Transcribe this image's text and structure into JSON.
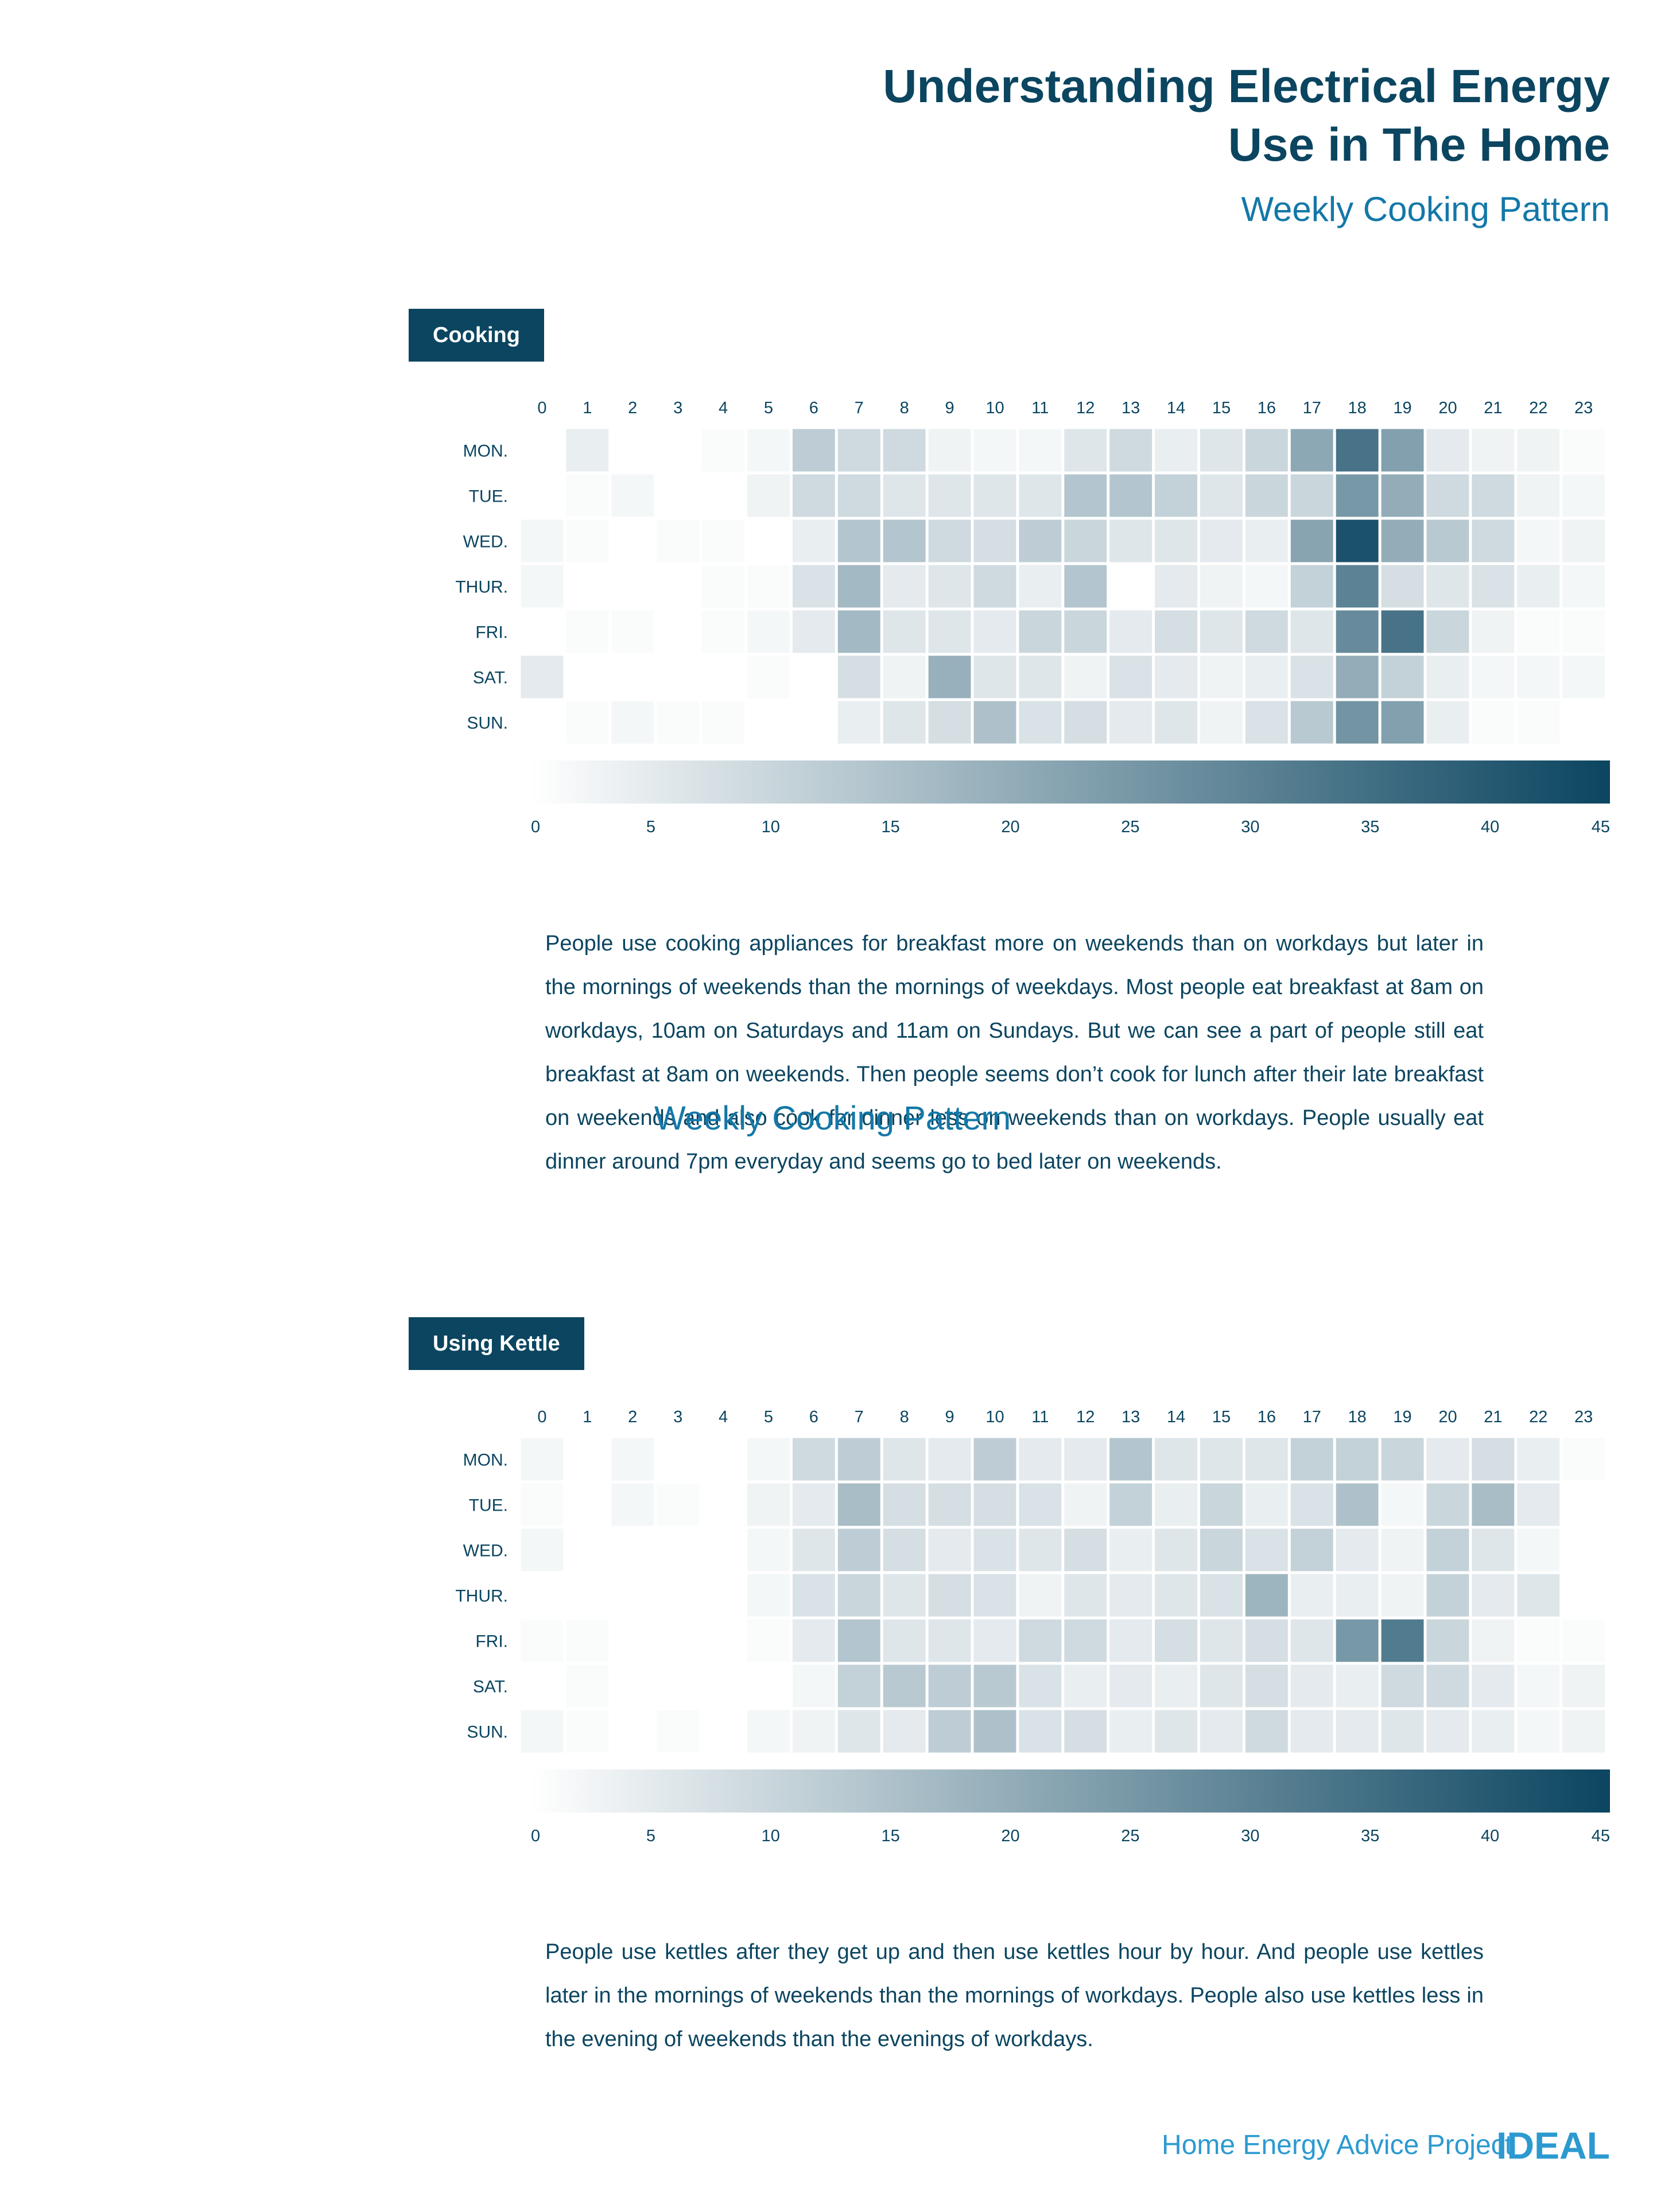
{
  "header": {
    "title_line1": "Understanding Electrical Energy",
    "title_line2": "Use in The Home",
    "subtitle": "Weekly Cooking Pattern"
  },
  "overlay_text": "Weekly Cooking Pattern",
  "sections": [
    {
      "label": "Cooking",
      "text": "People use cooking appliances for breakfast more on weekends than on workdays but later in the mornings of weekends than the mornings of weekdays. Most people eat breakfast at 8am on workdays, 10am on Saturdays and 11am on Sundays. But we can see a part of people still eat breakfast at 8am on weekends. Then people seems don’t cook for lunch after their late breakfast on weekends and also cook for dinner less on weekends than on workdays. People usually eat dinner around 7pm everyday and seems go to bed later on weekends."
    },
    {
      "label": "Using Kettle",
      "text": "People use kettles after they get up and then use kettles hour by hour. And people use kettles later in the mornings of weekends than the mornings of workdays. People also use kettles less in the evening of weekends than the evenings of workdays."
    }
  ],
  "footer": {
    "project": "Home Energy Advice Project",
    "logo": "IDEAL"
  },
  "colors": {
    "low": "#ffffff",
    "high": "#0b4560",
    "title": "#0b4560",
    "subtitle": "#1378a8",
    "footer": "#2c9ad0"
  },
  "chart_data": [
    {
      "type": "heatmap",
      "x": [
        "0",
        "1",
        "2",
        "3",
        "4",
        "5",
        "6",
        "7",
        "8",
        "9",
        "10",
        "11",
        "12",
        "13",
        "14",
        "15",
        "16",
        "17",
        "18",
        "19",
        "20",
        "21",
        "22",
        "23"
      ],
      "y": [
        "MON.",
        "TUE.",
        "WED.",
        "THUR.",
        "FRI.",
        "SAT.",
        "SUN."
      ],
      "values": [
        [
          0,
          4,
          0,
          0,
          1,
          2,
          12,
          9,
          9,
          3,
          2,
          2,
          6,
          9,
          4,
          6,
          10,
          21,
          34,
          23,
          5,
          3,
          3,
          1
        ],
        [
          0,
          1,
          2,
          0,
          0,
          3,
          9,
          9,
          6,
          6,
          6,
          6,
          14,
          14,
          11,
          6,
          10,
          10,
          25,
          20,
          9,
          9,
          3,
          2
        ],
        [
          2,
          1,
          0,
          1,
          1,
          0,
          4,
          14,
          14,
          9,
          8,
          12,
          10,
          6,
          6,
          5,
          4,
          22,
          42,
          20,
          13,
          9,
          2,
          3
        ],
        [
          2,
          0,
          0,
          0,
          1,
          1,
          7,
          17,
          5,
          6,
          9,
          4,
          14,
          0,
          5,
          3,
          2,
          11,
          30,
          8,
          6,
          7,
          4,
          2
        ],
        [
          0,
          1,
          1,
          0,
          1,
          2,
          5,
          17,
          6,
          6,
          5,
          10,
          10,
          5,
          8,
          6,
          9,
          6,
          28,
          34,
          10,
          3,
          1,
          1
        ],
        [
          5,
          0,
          0,
          0,
          0,
          1,
          0,
          8,
          3,
          19,
          6,
          6,
          3,
          7,
          5,
          3,
          4,
          7,
          20,
          11,
          4,
          2,
          2,
          2
        ],
        [
          0,
          1,
          2,
          1,
          1,
          0,
          0,
          4,
          6,
          8,
          15,
          7,
          8,
          5,
          6,
          3,
          7,
          13,
          26,
          23,
          4,
          1,
          1,
          0
        ]
      ],
      "colorbar": {
        "ticks": [
          0,
          5,
          10,
          15,
          20,
          25,
          30,
          35,
          40,
          45
        ],
        "range": [
          0,
          45
        ]
      }
    },
    {
      "type": "heatmap",
      "x": [
        "0",
        "1",
        "2",
        "3",
        "4",
        "5",
        "6",
        "7",
        "8",
        "9",
        "10",
        "11",
        "12",
        "13",
        "14",
        "15",
        "16",
        "17",
        "18",
        "19",
        "20",
        "21",
        "22",
        "23"
      ],
      "y": [
        "MON.",
        "TUE.",
        "WED.",
        "THUR.",
        "FRI.",
        "SAT.",
        "SUN."
      ],
      "values": [
        [
          2,
          0,
          2,
          0,
          0,
          2,
          9,
          12,
          6,
          5,
          12,
          5,
          5,
          14,
          6,
          6,
          6,
          11,
          11,
          10,
          5,
          8,
          4,
          1
        ],
        [
          1,
          0,
          2,
          1,
          0,
          3,
          5,
          16,
          8,
          8,
          8,
          7,
          3,
          11,
          4,
          10,
          4,
          7,
          15,
          2,
          10,
          16,
          5,
          0
        ],
        [
          2,
          0,
          0,
          0,
          0,
          2,
          6,
          12,
          8,
          5,
          7,
          6,
          8,
          4,
          6,
          10,
          7,
          11,
          5,
          3,
          11,
          6,
          2,
          0
        ],
        [
          0,
          0,
          0,
          0,
          0,
          2,
          7,
          10,
          6,
          8,
          7,
          3,
          6,
          5,
          6,
          7,
          18,
          4,
          4,
          3,
          11,
          5,
          6,
          0
        ],
        [
          1,
          1,
          0,
          0,
          0,
          1,
          5,
          14,
          6,
          6,
          5,
          9,
          9,
          5,
          8,
          6,
          8,
          6,
          25,
          32,
          10,
          3,
          1,
          1
        ],
        [
          0,
          1,
          0,
          0,
          0,
          0,
          2,
          11,
          13,
          12,
          13,
          7,
          4,
          5,
          4,
          6,
          8,
          5,
          4,
          9,
          9,
          5,
          2,
          3
        ],
        [
          2,
          1,
          0,
          1,
          0,
          2,
          3,
          6,
          5,
          12,
          15,
          7,
          8,
          4,
          6,
          5,
          9,
          5,
          5,
          6,
          5,
          4,
          2,
          3
        ]
      ],
      "colorbar": {
        "ticks": [
          0,
          5,
          10,
          15,
          20,
          25,
          30,
          35,
          40,
          45
        ],
        "range": [
          0,
          45
        ]
      }
    }
  ]
}
